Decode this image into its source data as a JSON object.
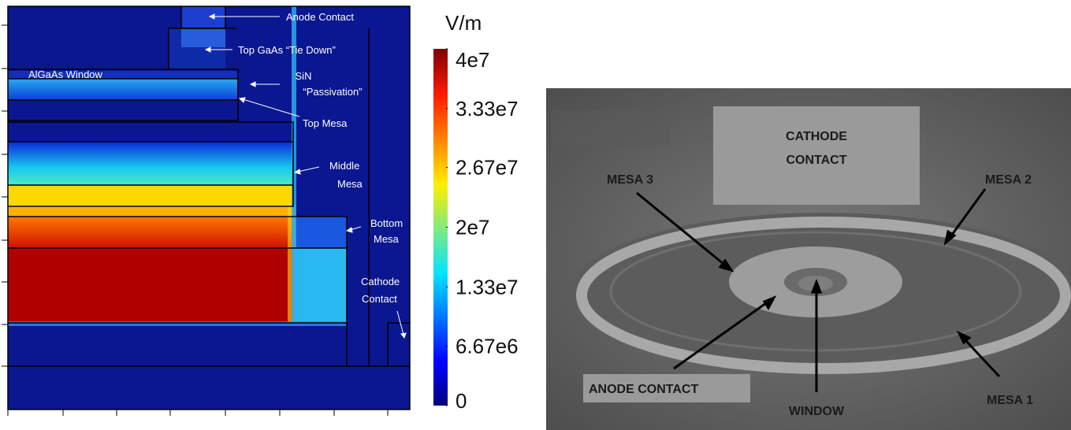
{
  "field_map": {
    "annotations": [
      {
        "lines": [
          "Anode Contact"
        ]
      },
      {
        "lines": [
          "Top GaAs “Tie Down”"
        ]
      },
      {
        "lines": [
          "AlGaAs Window"
        ]
      },
      {
        "lines": [
          "SiN",
          "“Passivation”"
        ]
      },
      {
        "lines": [
          "Top Mesa"
        ]
      },
      {
        "lines": [
          "Middle",
          "Mesa"
        ]
      },
      {
        "lines": [
          "Bottom",
          "Mesa"
        ]
      },
      {
        "lines": [
          "Cathode",
          "Contact"
        ]
      }
    ],
    "colorbar": {
      "unit": "V/m",
      "lim": [
        0,
        40000000
      ],
      "ticks": [
        {
          "value": 40000000,
          "label": "4e7"
        },
        {
          "value": 33300000,
          "label": "3.33e7"
        },
        {
          "value": 26700000,
          "label": "2.67e7"
        },
        {
          "value": 20000000,
          "label": "2e7"
        },
        {
          "value": 13300000,
          "label": "1.33e7"
        },
        {
          "value": 6670000,
          "label": "6.67e6"
        },
        0
      ]
    }
  },
  "photo": {
    "labels": [
      {
        "lines": [
          "CATHODE",
          "CONTACT"
        ]
      },
      {
        "lines": [
          "MESA 3"
        ]
      },
      {
        "lines": [
          "MESA 2"
        ]
      },
      {
        "lines": [
          "ANODE CONTACT"
        ]
      },
      {
        "lines": [
          "WINDOW"
        ]
      },
      {
        "lines": [
          "MESA 1"
        ]
      }
    ]
  }
}
